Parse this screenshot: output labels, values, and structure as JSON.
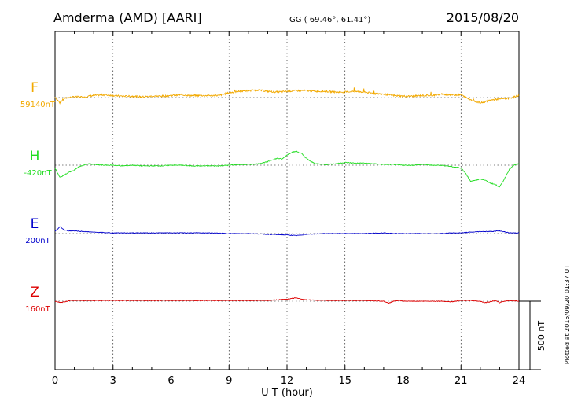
{
  "header": {
    "station": "Amderma (AMD)  [AARI]",
    "coords": "GG ( 69.46°,  61.41°)",
    "date": "2015/08/20"
  },
  "side_note": "Plotted at 2015/09/20 01:37 UT",
  "scale_label": "500 nT",
  "colors": {
    "F": "#f2a900",
    "H": "#22dd22",
    "E": "#0000cc",
    "Z": "#dd0000"
  },
  "chart_data": {
    "type": "line",
    "title": "Amderma (AMD)  [AARI]",
    "xlabel": "U T (hour)",
    "ylabel": "",
    "xlim": [
      0,
      24
    ],
    "x_ticks": [
      "0",
      "3",
      "6",
      "9",
      "12",
      "15",
      "18",
      "21",
      "24"
    ],
    "scale_bar_nT": 500,
    "series": [
      {
        "name": "F",
        "baseline_label": "59140nT",
        "baseline_nT": 59140,
        "x": [
          0,
          0.25,
          0.5,
          0.75,
          1,
          1.5,
          2,
          2.5,
          3,
          3.5,
          4,
          4.5,
          5,
          5.5,
          6,
          6.5,
          7,
          7.5,
          8,
          8.5,
          9,
          9.5,
          10,
          10.5,
          11,
          11.5,
          12,
          12.5,
          13,
          13.5,
          14,
          14.5,
          15,
          15.5,
          16,
          16.5,
          17,
          17.5,
          18,
          18.5,
          19,
          19.5,
          20,
          20.5,
          21,
          21.25,
          21.5,
          22,
          22.5,
          23,
          23.5,
          24
        ],
        "values": [
          5,
          -40,
          -5,
          0,
          5,
          5,
          15,
          20,
          15,
          10,
          10,
          5,
          10,
          10,
          15,
          20,
          15,
          15,
          15,
          15,
          35,
          45,
          50,
          55,
          45,
          40,
          45,
          50,
          50,
          45,
          45,
          40,
          40,
          45,
          40,
          30,
          25,
          15,
          10,
          10,
          15,
          15,
          25,
          20,
          20,
          0,
          -15,
          -40,
          -20,
          -10,
          -5,
          15
        ]
      },
      {
        "name": "H",
        "baseline_label": "-420nT",
        "baseline_nT": -420,
        "x": [
          0,
          0.25,
          0.5,
          0.75,
          1,
          1.25,
          1.5,
          1.75,
          2,
          2.5,
          3,
          3.5,
          4,
          4.5,
          5,
          5.5,
          6,
          6.5,
          7,
          7.5,
          8,
          8.5,
          9,
          9.5,
          10,
          10.5,
          11,
          11.25,
          11.5,
          11.75,
          12,
          12.25,
          12.5,
          12.75,
          13,
          13.25,
          13.5,
          14,
          14.5,
          15,
          15.5,
          16,
          16.5,
          17,
          17.5,
          18,
          18.5,
          19,
          19.5,
          20,
          20.5,
          21,
          21.25,
          21.5,
          21.75,
          22,
          22.25,
          22.5,
          22.75,
          23,
          23.25,
          23.5,
          23.75,
          24
        ],
        "values": [
          -20,
          -90,
          -70,
          -50,
          -35,
          -10,
          0,
          10,
          5,
          0,
          0,
          -5,
          0,
          -5,
          -5,
          -5,
          0,
          0,
          -5,
          -5,
          -5,
          -5,
          0,
          5,
          5,
          10,
          25,
          40,
          50,
          45,
          75,
          95,
          100,
          85,
          50,
          25,
          10,
          5,
          10,
          20,
          15,
          15,
          10,
          5,
          5,
          0,
          0,
          5,
          0,
          0,
          -10,
          -20,
          -60,
          -120,
          -110,
          -100,
          -110,
          -130,
          -140,
          -160,
          -100,
          -30,
          0,
          10
        ]
      },
      {
        "name": "E",
        "baseline_label": "200nT",
        "baseline_nT": 200,
        "x": [
          0,
          0.25,
          0.5,
          0.75,
          1,
          1.5,
          2,
          3,
          4,
          5,
          6,
          7,
          8,
          9,
          10,
          11,
          12,
          12.5,
          13,
          14,
          15,
          16,
          17,
          17.5,
          18,
          19,
          20,
          20.5,
          21,
          21.5,
          22,
          22.5,
          23,
          23.5,
          24
        ],
        "values": [
          15,
          50,
          25,
          20,
          20,
          15,
          10,
          5,
          5,
          5,
          5,
          5,
          5,
          0,
          0,
          -5,
          -10,
          -15,
          -5,
          0,
          0,
          0,
          5,
          0,
          0,
          0,
          0,
          5,
          5,
          10,
          15,
          15,
          20,
          5,
          5
        ]
      },
      {
        "name": "Z",
        "baseline_label": "160nT",
        "baseline_nT": 160,
        "x": [
          0,
          0.25,
          0.5,
          0.75,
          1,
          1.5,
          2,
          3,
          4,
          5,
          6,
          7,
          8,
          9,
          10,
          11,
          11.5,
          12,
          12.25,
          12.5,
          12.75,
          13,
          14,
          15,
          16,
          17,
          17.25,
          17.5,
          17.75,
          18,
          19,
          20,
          20.5,
          21,
          21.5,
          22,
          22.25,
          22.5,
          22.75,
          23,
          23.25,
          23.5,
          24
        ],
        "values": [
          0,
          -10,
          -5,
          5,
          5,
          5,
          5,
          5,
          5,
          5,
          5,
          5,
          5,
          5,
          5,
          5,
          10,
          15,
          20,
          25,
          15,
          10,
          5,
          5,
          5,
          0,
          -15,
          0,
          5,
          0,
          0,
          0,
          -5,
          5,
          5,
          0,
          -10,
          -5,
          5,
          -10,
          0,
          5,
          0
        ]
      }
    ]
  }
}
